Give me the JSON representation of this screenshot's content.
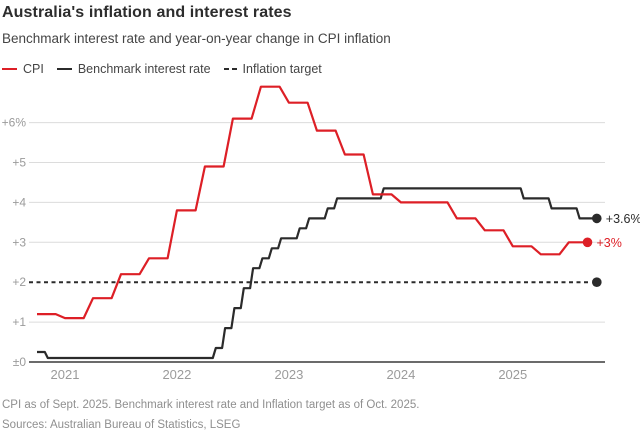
{
  "header": {
    "title": "Australia's inflation and interest rates",
    "subtitle": "Benchmark interest rate and year-on-year change in CPI inflation"
  },
  "legend": [
    {
      "label": "CPI",
      "color": "#dd1f26",
      "style": "solid"
    },
    {
      "label": "Benchmark interest rate",
      "color": "#2b2b2b",
      "style": "solid"
    },
    {
      "label": "Inflation target",
      "color": "#2b2b2b",
      "style": "dashed"
    }
  ],
  "chart_data": {
    "type": "line",
    "title": "Australia's inflation and interest rates",
    "x_range": {
      "start": "2020-10",
      "end": "2025-10",
      "months": 60
    },
    "x_ticks": [
      {
        "label": "2021",
        "month": 3
      },
      {
        "label": "2022",
        "month": 15
      },
      {
        "label": "2023",
        "month": 27
      },
      {
        "label": "2024",
        "month": 39
      },
      {
        "label": "2025",
        "month": 51
      }
    ],
    "y_ticks": [
      {
        "label": "+6%",
        "value": 6
      },
      {
        "label": "+5",
        "value": 5
      },
      {
        "label": "+4",
        "value": 4
      },
      {
        "label": "+3",
        "value": 3
      },
      {
        "label": "+2",
        "value": 2
      },
      {
        "label": "+1",
        "value": 1
      },
      {
        "label": "±0",
        "value": 0
      }
    ],
    "ylim": [
      0,
      6.9
    ],
    "grid": true,
    "legend_position": "top",
    "series": [
      {
        "name": "CPI",
        "color": "#dd1f26",
        "frequency": "quarterly",
        "quarters": [
          "2020-Q4",
          "2021-Q1",
          "2021-Q2",
          "2021-Q3",
          "2021-Q4",
          "2022-Q1",
          "2022-Q2",
          "2022-Q3",
          "2022-Q4",
          "2023-Q1",
          "2023-Q2",
          "2023-Q3",
          "2023-Q4",
          "2024-Q1",
          "2024-Q2",
          "2024-Q3",
          "2024-Q4",
          "2025-Q1",
          "2025-Q2",
          "2025-Q3"
        ],
        "values": [
          1.2,
          1.1,
          1.6,
          2.2,
          2.6,
          3.8,
          4.9,
          6.1,
          6.9,
          6.5,
          5.8,
          5.2,
          4.2,
          4.0,
          4.0,
          3.6,
          3.3,
          2.9,
          2.7,
          3.0
        ],
        "end_label": "+3%"
      },
      {
        "name": "Benchmark interest rate",
        "color": "#2b2b2b",
        "frequency": "monthly",
        "start": "2020-10",
        "values": [
          0.25,
          0.1,
          0.1,
          0.1,
          0.1,
          0.1,
          0.1,
          0.1,
          0.1,
          0.1,
          0.1,
          0.1,
          0.1,
          0.1,
          0.1,
          0.1,
          0.1,
          0.1,
          0.1,
          0.35,
          0.85,
          1.35,
          1.85,
          2.35,
          2.6,
          2.85,
          3.1,
          3.1,
          3.35,
          3.6,
          3.6,
          3.85,
          4.1,
          4.1,
          4.1,
          4.1,
          4.1,
          4.35,
          4.35,
          4.35,
          4.35,
          4.35,
          4.35,
          4.35,
          4.35,
          4.35,
          4.35,
          4.35,
          4.35,
          4.35,
          4.35,
          4.35,
          4.1,
          4.1,
          4.1,
          3.85,
          3.85,
          3.85,
          3.6,
          3.6,
          3.6
        ],
        "end_label": "+3.6%"
      },
      {
        "name": "Inflation target",
        "color": "#2b2b2b",
        "style": "dashed",
        "value": 2
      }
    ]
  },
  "footer": {
    "note": "CPI as of Sept. 2025. Benchmark interest rate and Inflation target as of Oct. 2025.",
    "sources": "Sources: Australian Bureau of Statistics, LSEG"
  }
}
